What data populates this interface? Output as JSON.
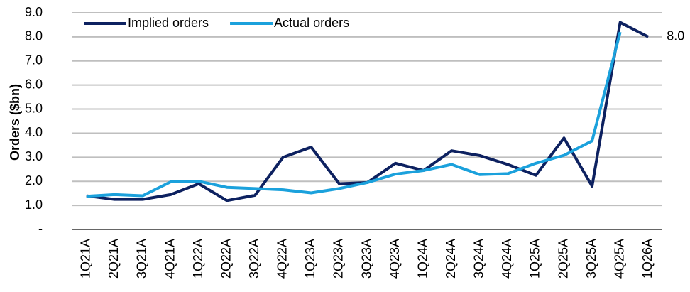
{
  "chart_data": {
    "type": "line",
    "y_label": "Orders ($bn)",
    "categories": [
      "1Q21A",
      "2Q21A",
      "3Q21A",
      "4Q21A",
      "1Q22A",
      "2Q22A",
      "3Q22A",
      "4Q22A",
      "1Q23A",
      "2Q23A",
      "3Q23A",
      "4Q23A",
      "1Q24A",
      "2Q24A",
      "3Q24A",
      "4Q24A",
      "1Q25A",
      "2Q25A",
      "3Q25A",
      "4Q25A",
      "1Q26A"
    ],
    "series": [
      {
        "name": "Implied orders",
        "color": "#0d2160",
        "values": [
          1.4,
          1.25,
          1.25,
          1.45,
          1.9,
          1.2,
          1.42,
          3.0,
          3.42,
          1.9,
          1.95,
          2.75,
          2.45,
          3.27,
          3.07,
          2.7,
          2.25,
          3.8,
          1.8,
          8.6,
          8.0
        ],
        "value_labels": [
          null,
          null,
          null,
          null,
          null,
          null,
          null,
          null,
          null,
          null,
          null,
          null,
          null,
          null,
          null,
          null,
          null,
          null,
          null,
          null,
          "8.0"
        ]
      },
      {
        "name": "Actual orders",
        "color": "#1ba1dc",
        "values": [
          1.38,
          1.45,
          1.4,
          1.98,
          2.0,
          1.75,
          1.7,
          1.65,
          1.52,
          1.7,
          1.95,
          2.3,
          2.45,
          2.7,
          2.28,
          2.32,
          2.75,
          3.08,
          3.68,
          8.2,
          null
        ]
      }
    ],
    "ylim": [
      0,
      9
    ],
    "yticks": [
      {
        "value": 0,
        "label": "-"
      },
      {
        "value": 1,
        "label": "1.0"
      },
      {
        "value": 2,
        "label": "2.0"
      },
      {
        "value": 3,
        "label": "3.0"
      },
      {
        "value": 4,
        "label": "4.0"
      },
      {
        "value": 5,
        "label": "5.0"
      },
      {
        "value": 6,
        "label": "6.0"
      },
      {
        "value": 7,
        "label": "7.0"
      },
      {
        "value": 8,
        "label": "8.0"
      },
      {
        "value": 9,
        "label": "9.0"
      }
    ],
    "grid": true,
    "legend": "top-left"
  }
}
